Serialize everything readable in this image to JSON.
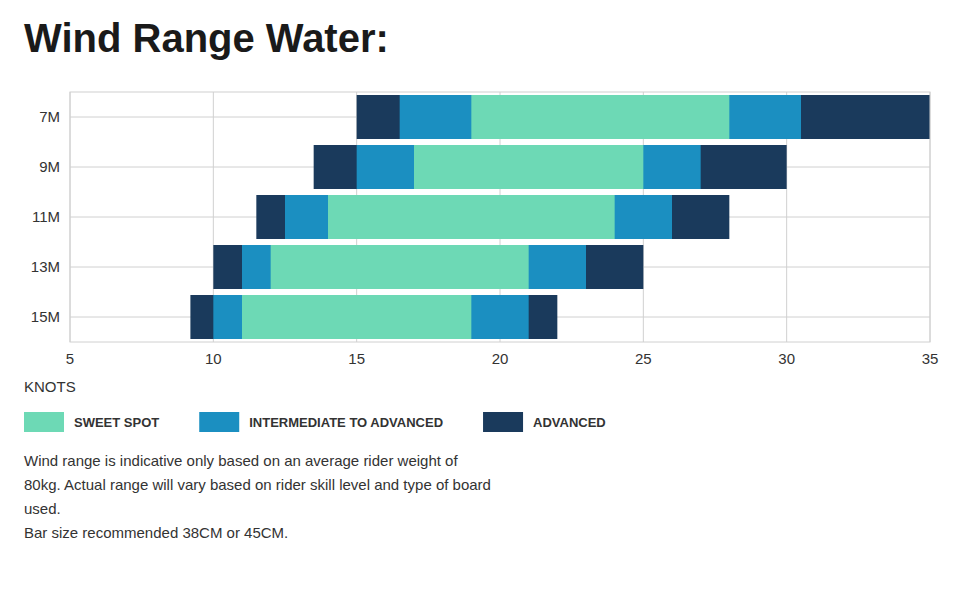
{
  "chart_data": {
    "type": "range",
    "title": "Wind Range Water:",
    "x_label": "KNOTS",
    "orientation": "horizontal",
    "categories": [
      "7M",
      "9M",
      "11M",
      "13M",
      "15M"
    ],
    "series": [
      {
        "name": "SWEET SPOT",
        "color": "#6dd9b5",
        "values": [
          [
            19,
            28
          ],
          [
            17,
            25
          ],
          [
            14,
            24
          ],
          [
            12,
            21
          ],
          [
            11,
            19
          ]
        ]
      },
      {
        "name": "INTERMEDIATE TO ADVANCED",
        "color": "#1b8fc1",
        "values": [
          [
            16.5,
            30.5
          ],
          [
            15,
            27
          ],
          [
            12.5,
            26
          ],
          [
            11,
            23
          ],
          [
            10,
            21
          ]
        ]
      },
      {
        "name": "ADVANCED",
        "color": "#1a3a5c",
        "values": [
          [
            15,
            35
          ],
          [
            13.5,
            30
          ],
          [
            11.5,
            28
          ],
          [
            10,
            25
          ],
          [
            9.2,
            22
          ]
        ]
      }
    ],
    "xlim": [
      5,
      35
    ],
    "xticks": [
      5,
      10,
      15,
      20,
      25,
      30,
      35
    ],
    "grid": true,
    "legend": "bottom",
    "annotations": [
      "Wind range is indicative only based on an average rider weight of",
      "80kg. Actual range will vary based on rider skill level and type of board",
      "used.",
      "Bar size recommended 38CM or 45CM."
    ]
  }
}
